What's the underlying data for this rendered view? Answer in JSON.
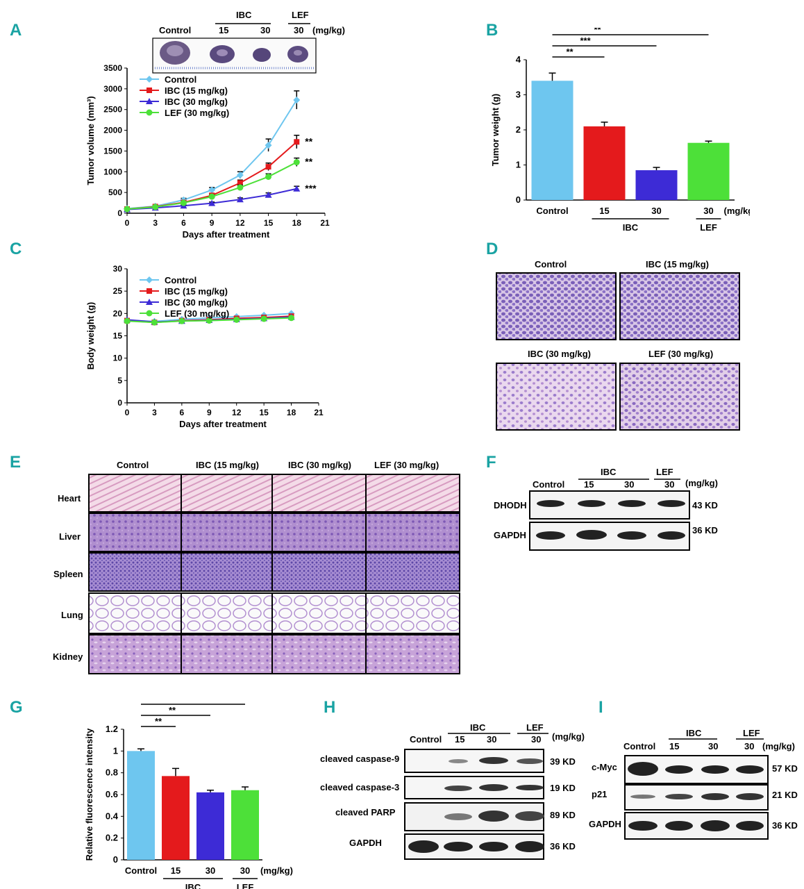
{
  "panels": {
    "A": {
      "letter": "A"
    },
    "B": {
      "letter": "B"
    },
    "C": {
      "letter": "C"
    },
    "D": {
      "letter": "D"
    },
    "E": {
      "letter": "E"
    },
    "F": {
      "letter": "F"
    },
    "G": {
      "letter": "G"
    },
    "H": {
      "letter": "H"
    },
    "I": {
      "letter": "I"
    }
  },
  "tumor_photo": {
    "header_control": "Control",
    "header_ibc": "IBC",
    "header_lef": "LEF",
    "dose_15": "15",
    "dose_30a": "30",
    "dose_30b": "30",
    "unit": "(mg/kg)"
  },
  "chart_data": [
    {
      "panel": "A",
      "type": "line",
      "xlabel": "Days after treatment",
      "ylabel": "Tumor volume (mm³)",
      "x": [
        0,
        3,
        6,
        9,
        12,
        15,
        18
      ],
      "xlim": [
        0,
        21
      ],
      "xticks": [
        "0",
        "3",
        "6",
        "9",
        "12",
        "15",
        "18",
        "21"
      ],
      "ylim": [
        0,
        3500
      ],
      "yticks": [
        "0",
        "500",
        "1000",
        "1500",
        "2000",
        "2500",
        "3000",
        "3500"
      ],
      "legend": "top-left",
      "series": [
        {
          "name": "Control",
          "color": "#6ec6ef",
          "marker": "diamond",
          "values": [
            110,
            170,
            320,
            560,
            920,
            1640,
            2730
          ],
          "err": [
            20,
            20,
            40,
            60,
            80,
            150,
            220
          ]
        },
        {
          "name": "IBC   (15 mg/kg)",
          "color": "#e41a1c",
          "marker": "square",
          "values": [
            100,
            160,
            260,
            430,
            730,
            1120,
            1720
          ],
          "err": [
            20,
            20,
            30,
            50,
            70,
            90,
            160
          ]
        },
        {
          "name": "IBC   (30 mg/kg)",
          "color": "#3d2bd6",
          "marker": "triangle",
          "values": [
            90,
            130,
            180,
            240,
            330,
            440,
            590
          ],
          "err": [
            20,
            20,
            20,
            30,
            40,
            50,
            60
          ]
        },
        {
          "name": "LEF   (30 mg/kg)",
          "color": "#4de039",
          "marker": "circle",
          "values": [
            100,
            150,
            250,
            400,
            620,
            880,
            1230
          ],
          "err": [
            20,
            20,
            30,
            40,
            60,
            70,
            100
          ]
        }
      ],
      "annotations": [
        "**",
        "**",
        "***"
      ]
    },
    {
      "panel": "B",
      "type": "bar",
      "ylabel": "Tumor weight (g)",
      "categories": [
        "Control",
        "15",
        "30",
        "30"
      ],
      "values": [
        3.4,
        2.1,
        0.85,
        1.63
      ],
      "err": [
        0.22,
        0.12,
        0.08,
        0.05
      ],
      "colors": [
        "#6ec6ef",
        "#e41a1c",
        "#3d2bd6",
        "#4de039"
      ],
      "ylim": [
        0,
        4
      ],
      "yticks": [
        "0",
        "1",
        "2",
        "3",
        "4"
      ],
      "unit": "(mg/kg)",
      "group_labels": [
        "IBC",
        "LEF"
      ],
      "significance": [
        "**",
        "***",
        "**"
      ]
    },
    {
      "panel": "C",
      "type": "line",
      "xlabel": "Days after treatment",
      "ylabel": "Body weight (g)",
      "x": [
        0,
        3,
        6,
        9,
        12,
        15,
        18
      ],
      "xlim": [
        0,
        21
      ],
      "xticks": [
        "0",
        "3",
        "6",
        "9",
        "12",
        "15",
        "18",
        "21"
      ],
      "ylim": [
        0,
        30
      ],
      "yticks": [
        "0",
        "5",
        "10",
        "15",
        "20",
        "25",
        "30"
      ],
      "legend": "top-left",
      "series": [
        {
          "name": "Control",
          "color": "#6ec6ef",
          "marker": "diamond",
          "values": [
            18.5,
            18.2,
            18.7,
            19.0,
            19.3,
            19.6,
            20.0
          ]
        },
        {
          "name": "IBC    (15 mg/kg)",
          "color": "#e41a1c",
          "marker": "square",
          "values": [
            18.4,
            18.0,
            18.4,
            18.6,
            18.9,
            19.1,
            19.4
          ]
        },
        {
          "name": "IBC    (30 mg/kg)",
          "color": "#3d2bd6",
          "marker": "triangle",
          "values": [
            18.6,
            18.1,
            18.3,
            18.5,
            18.7,
            18.9,
            19.2
          ]
        },
        {
          "name": "LEF    (30 mg/kg)",
          "color": "#4de039",
          "marker": "circle",
          "values": [
            18.3,
            18.0,
            18.3,
            18.4,
            18.6,
            18.8,
            19.0
          ]
        }
      ]
    },
    {
      "panel": "G",
      "type": "bar",
      "ylabel": "Relative fluorescence intensity",
      "categories": [
        "Control",
        "15",
        "30",
        "30"
      ],
      "values": [
        1.0,
        0.77,
        0.62,
        0.64
      ],
      "err": [
        0.02,
        0.07,
        0.02,
        0.03
      ],
      "colors": [
        "#6ec6ef",
        "#e41a1c",
        "#3d2bd6",
        "#4de039"
      ],
      "ylim": [
        0,
        1.2
      ],
      "yticks": [
        "0",
        "0.2",
        "0.4",
        "0.6",
        "0.8",
        "1",
        "1.2"
      ],
      "unit": "(mg/kg)",
      "group_labels": [
        "IBC",
        "LEF"
      ],
      "significance": [
        "**",
        "**",
        "**"
      ]
    }
  ],
  "histology_D": {
    "labels": [
      "Control",
      "IBC (15 mg/kg)",
      "IBC (30 mg/kg)",
      "LEF (30 mg/kg)"
    ]
  },
  "histology_E": {
    "columns": [
      "Control",
      "IBC (15 mg/kg)",
      "IBC (30 mg/kg)",
      "LEF  (30  mg/kg)"
    ],
    "rows": [
      "Heart",
      "Liver",
      "Spleen",
      "Lung",
      "Kidney"
    ]
  },
  "blot_F": {
    "control": "Control",
    "ibc": "IBC",
    "lef": "LEF",
    "doses": [
      "15",
      "30",
      "30"
    ],
    "unit": "(mg/kg)",
    "rows": [
      {
        "label": "DHODH",
        "kd": "43 KD"
      },
      {
        "label": "GAPDH",
        "kd": "36 KD"
      }
    ]
  },
  "blot_H": {
    "control": "Control",
    "ibc": "IBC",
    "lef": "LEF",
    "doses": [
      "15",
      "30",
      "30"
    ],
    "unit": "(mg/kg)",
    "rows": [
      {
        "label": "cleaved caspase-9",
        "kd": "39 KD"
      },
      {
        "label": "cleaved caspase-3",
        "kd": "19 KD"
      },
      {
        "label": "cleaved PARP",
        "kd": "89 KD"
      },
      {
        "label": "GAPDH",
        "kd": "36 KD"
      }
    ]
  },
  "blot_I": {
    "control": "Control",
    "ibc": "IBC",
    "lef": "LEF",
    "doses": [
      "15",
      "30",
      "30"
    ],
    "unit": "(mg/kg)",
    "rows": [
      {
        "label": "c-Myc",
        "kd": "57 KD"
      },
      {
        "label": "p21",
        "kd": "21 KD"
      },
      {
        "label": "GAPDH",
        "kd": "36 KD"
      }
    ]
  }
}
